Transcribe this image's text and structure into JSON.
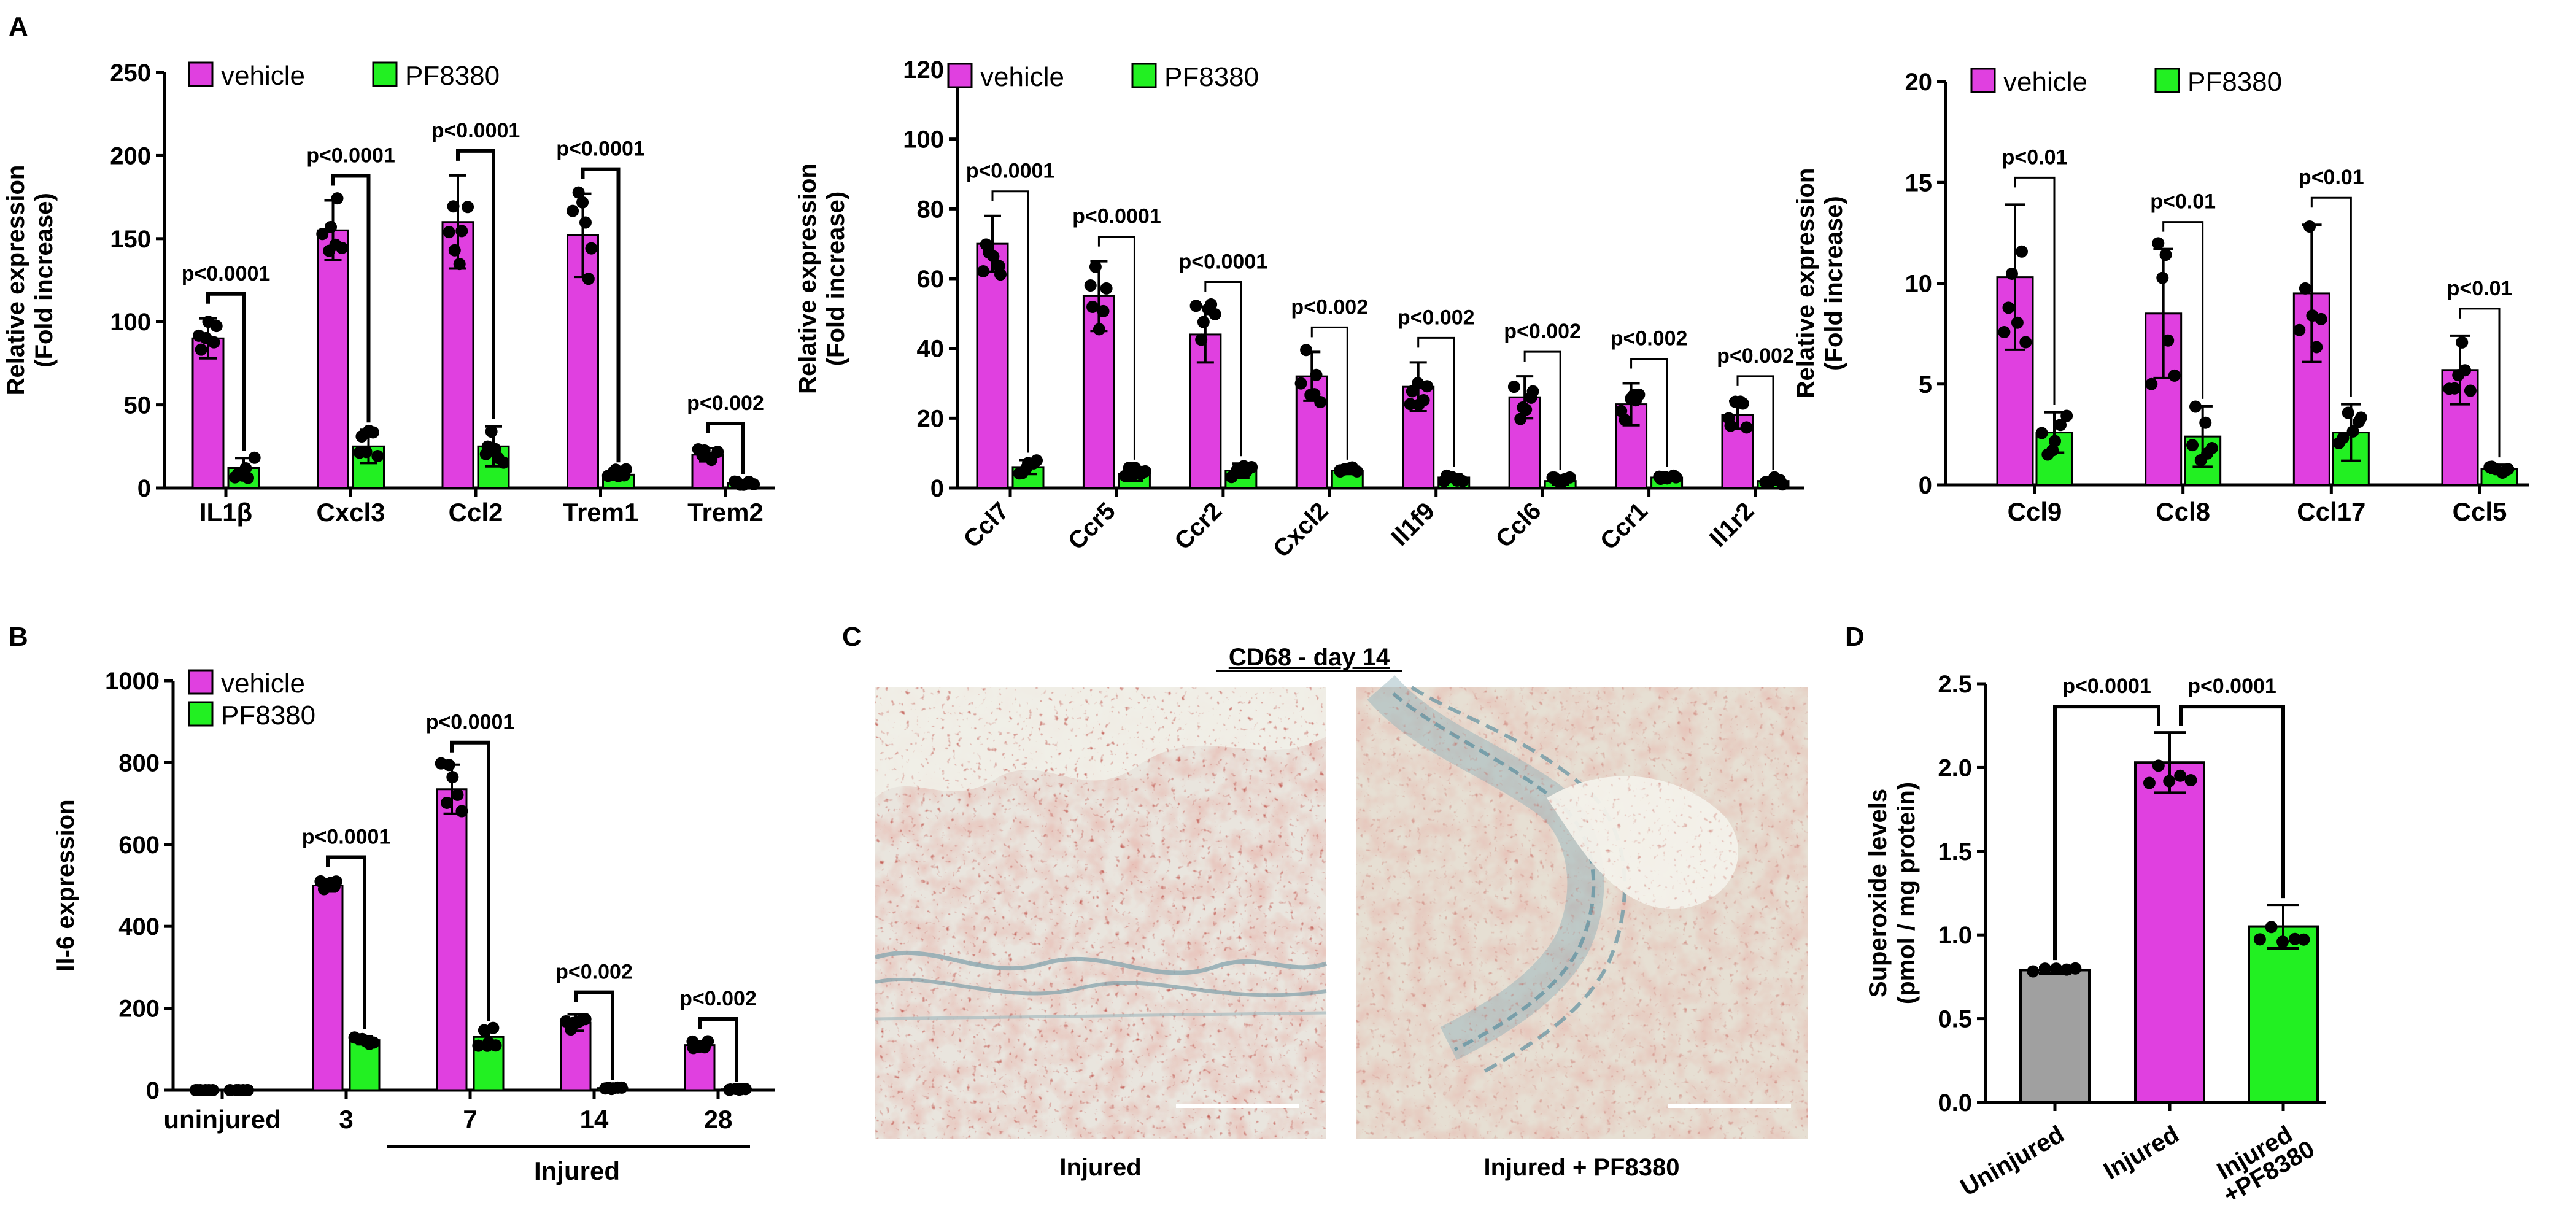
{
  "colors": {
    "vehicle": "#E040E0",
    "pf8380": "#22F022",
    "uninjured": "#A0A0A0",
    "dot": "#000000"
  },
  "panel_labels": {
    "a": "A",
    "b": "B",
    "c": "C",
    "d": "D"
  },
  "legend": {
    "vehicle": "vehicle",
    "pf8380": "PF8380"
  },
  "chart_data": [
    {
      "id": "A1",
      "type": "bar",
      "title": "",
      "ylabel": "Relative expression (Fold increase)",
      "ylabel_lines": [
        "Relative expression",
        "(Fold increase)"
      ],
      "ylim": [
        0,
        250
      ],
      "yticks": [
        0,
        50,
        100,
        150,
        200,
        250
      ],
      "categories": [
        "IL1β",
        "Cxcl3",
        "Ccl2",
        "Trem1",
        "Trem2"
      ],
      "series": [
        {
          "name": "vehicle",
          "values": [
            90,
            155,
            160,
            152,
            20
          ],
          "errors": [
            12,
            18,
            28,
            25,
            4
          ]
        },
        {
          "name": "PF8380",
          "values": [
            12,
            25,
            25,
            8,
            3
          ],
          "errors": [
            6,
            10,
            12,
            3,
            1
          ]
        }
      ],
      "pvalues": [
        "p<0.0001",
        "p<0.0001",
        "p<0.0001",
        "p<0.0001",
        "p<0.002"
      ]
    },
    {
      "id": "A2",
      "type": "bar",
      "ylabel": "Relative expression (Fold increase)",
      "ylabel_lines": [
        "Relative expression",
        "(Fold increase)"
      ],
      "ylim": [
        0,
        120
      ],
      "yticks": [
        0,
        20,
        40,
        60,
        80,
        100,
        120
      ],
      "categories": [
        "Ccl7",
        "Ccr5",
        "Ccr2",
        "Cxcl2",
        "Il1f9",
        "Ccl6",
        "Ccr1",
        "Il1r2"
      ],
      "series": [
        {
          "name": "vehicle",
          "values": [
            70,
            55,
            44,
            32,
            29,
            26,
            24,
            21
          ],
          "errors": [
            8,
            10,
            8,
            7,
            7,
            6,
            6,
            4
          ]
        },
        {
          "name": "PF8380",
          "values": [
            6,
            4,
            5,
            5,
            3,
            2,
            3,
            2
          ],
          "errors": [
            2,
            2,
            2,
            1,
            1,
            1,
            1,
            1
          ]
        }
      ],
      "pvalues": [
        "p<0.0001",
        "p<0.0001",
        "p<0.0001",
        "p<0.002",
        "p<0.002",
        "p<0.002",
        "p<0.002",
        "p<0.002"
      ]
    },
    {
      "id": "A3",
      "type": "bar",
      "ylabel": "Relative expression (Fold increase)",
      "ylabel_lines": [
        "Relative expression",
        "(Fold increase)"
      ],
      "ylim": [
        0,
        20
      ],
      "yticks": [
        0,
        5,
        10,
        15,
        20
      ],
      "categories": [
        "Ccl9",
        "Ccl8",
        "Ccl17",
        "Ccl5"
      ],
      "series": [
        {
          "name": "vehicle",
          "values": [
            10.3,
            8.5,
            9.5,
            5.7
          ],
          "errors": [
            3.6,
            3.2,
            3.4,
            1.7
          ]
        },
        {
          "name": "PF8380",
          "values": [
            2.6,
            2.4,
            2.6,
            0.8
          ],
          "errors": [
            1.0,
            1.5,
            1.4,
            0.2
          ]
        }
      ],
      "pvalues": [
        "p<0.01",
        "p<0.01",
        "p<0.01",
        "p<0.01"
      ]
    },
    {
      "id": "B",
      "type": "bar",
      "ylabel": "Il-6 expression",
      "ylim": [
        0,
        1000
      ],
      "yticks": [
        0,
        200,
        400,
        600,
        800,
        1000
      ],
      "categories": [
        "uninjured",
        "3",
        "7",
        "14",
        "28"
      ],
      "xgroup_label": "Injured",
      "series": [
        {
          "name": "vehicle",
          "values": [
            0,
            500,
            735,
            165,
            110
          ],
          "errors": [
            0,
            15,
            60,
            20,
            10
          ]
        },
        {
          "name": "PF8380",
          "values": [
            0,
            122,
            130,
            5,
            2
          ],
          "errors": [
            0,
            10,
            20,
            2,
            1
          ]
        }
      ],
      "pvalues": [
        "",
        "p<0.0001",
        "p<0.0001",
        "p<0.002",
        "p<0.002"
      ]
    },
    {
      "id": "D",
      "type": "bar",
      "ylabel": "Superoxide levels (pmol / mg protein)",
      "ylabel_lines": [
        "Superoxide levels",
        "(pmol / mg protein)"
      ],
      "ylim": [
        0,
        2.5
      ],
      "yticks": [
        "0.0",
        "0.5",
        "1.0",
        "1.5",
        "2.0",
        "2.5"
      ],
      "categories": [
        "Uninjured",
        "Injured",
        "Injured +PF8380"
      ],
      "category_lines": [
        [
          "Uninjured"
        ],
        [
          "Injured"
        ],
        [
          "Injured",
          "+PF8380"
        ]
      ],
      "values": [
        0.79,
        2.03,
        1.05
      ],
      "errors": [
        0.02,
        0.18,
        0.13
      ],
      "pvalues": [
        "p<0.0001",
        "p<0.0001"
      ]
    }
  ],
  "panel_c": {
    "title": "CD68 - day 14",
    "images": [
      {
        "caption": "Injured"
      },
      {
        "caption": "Injured + PF8380"
      }
    ]
  }
}
